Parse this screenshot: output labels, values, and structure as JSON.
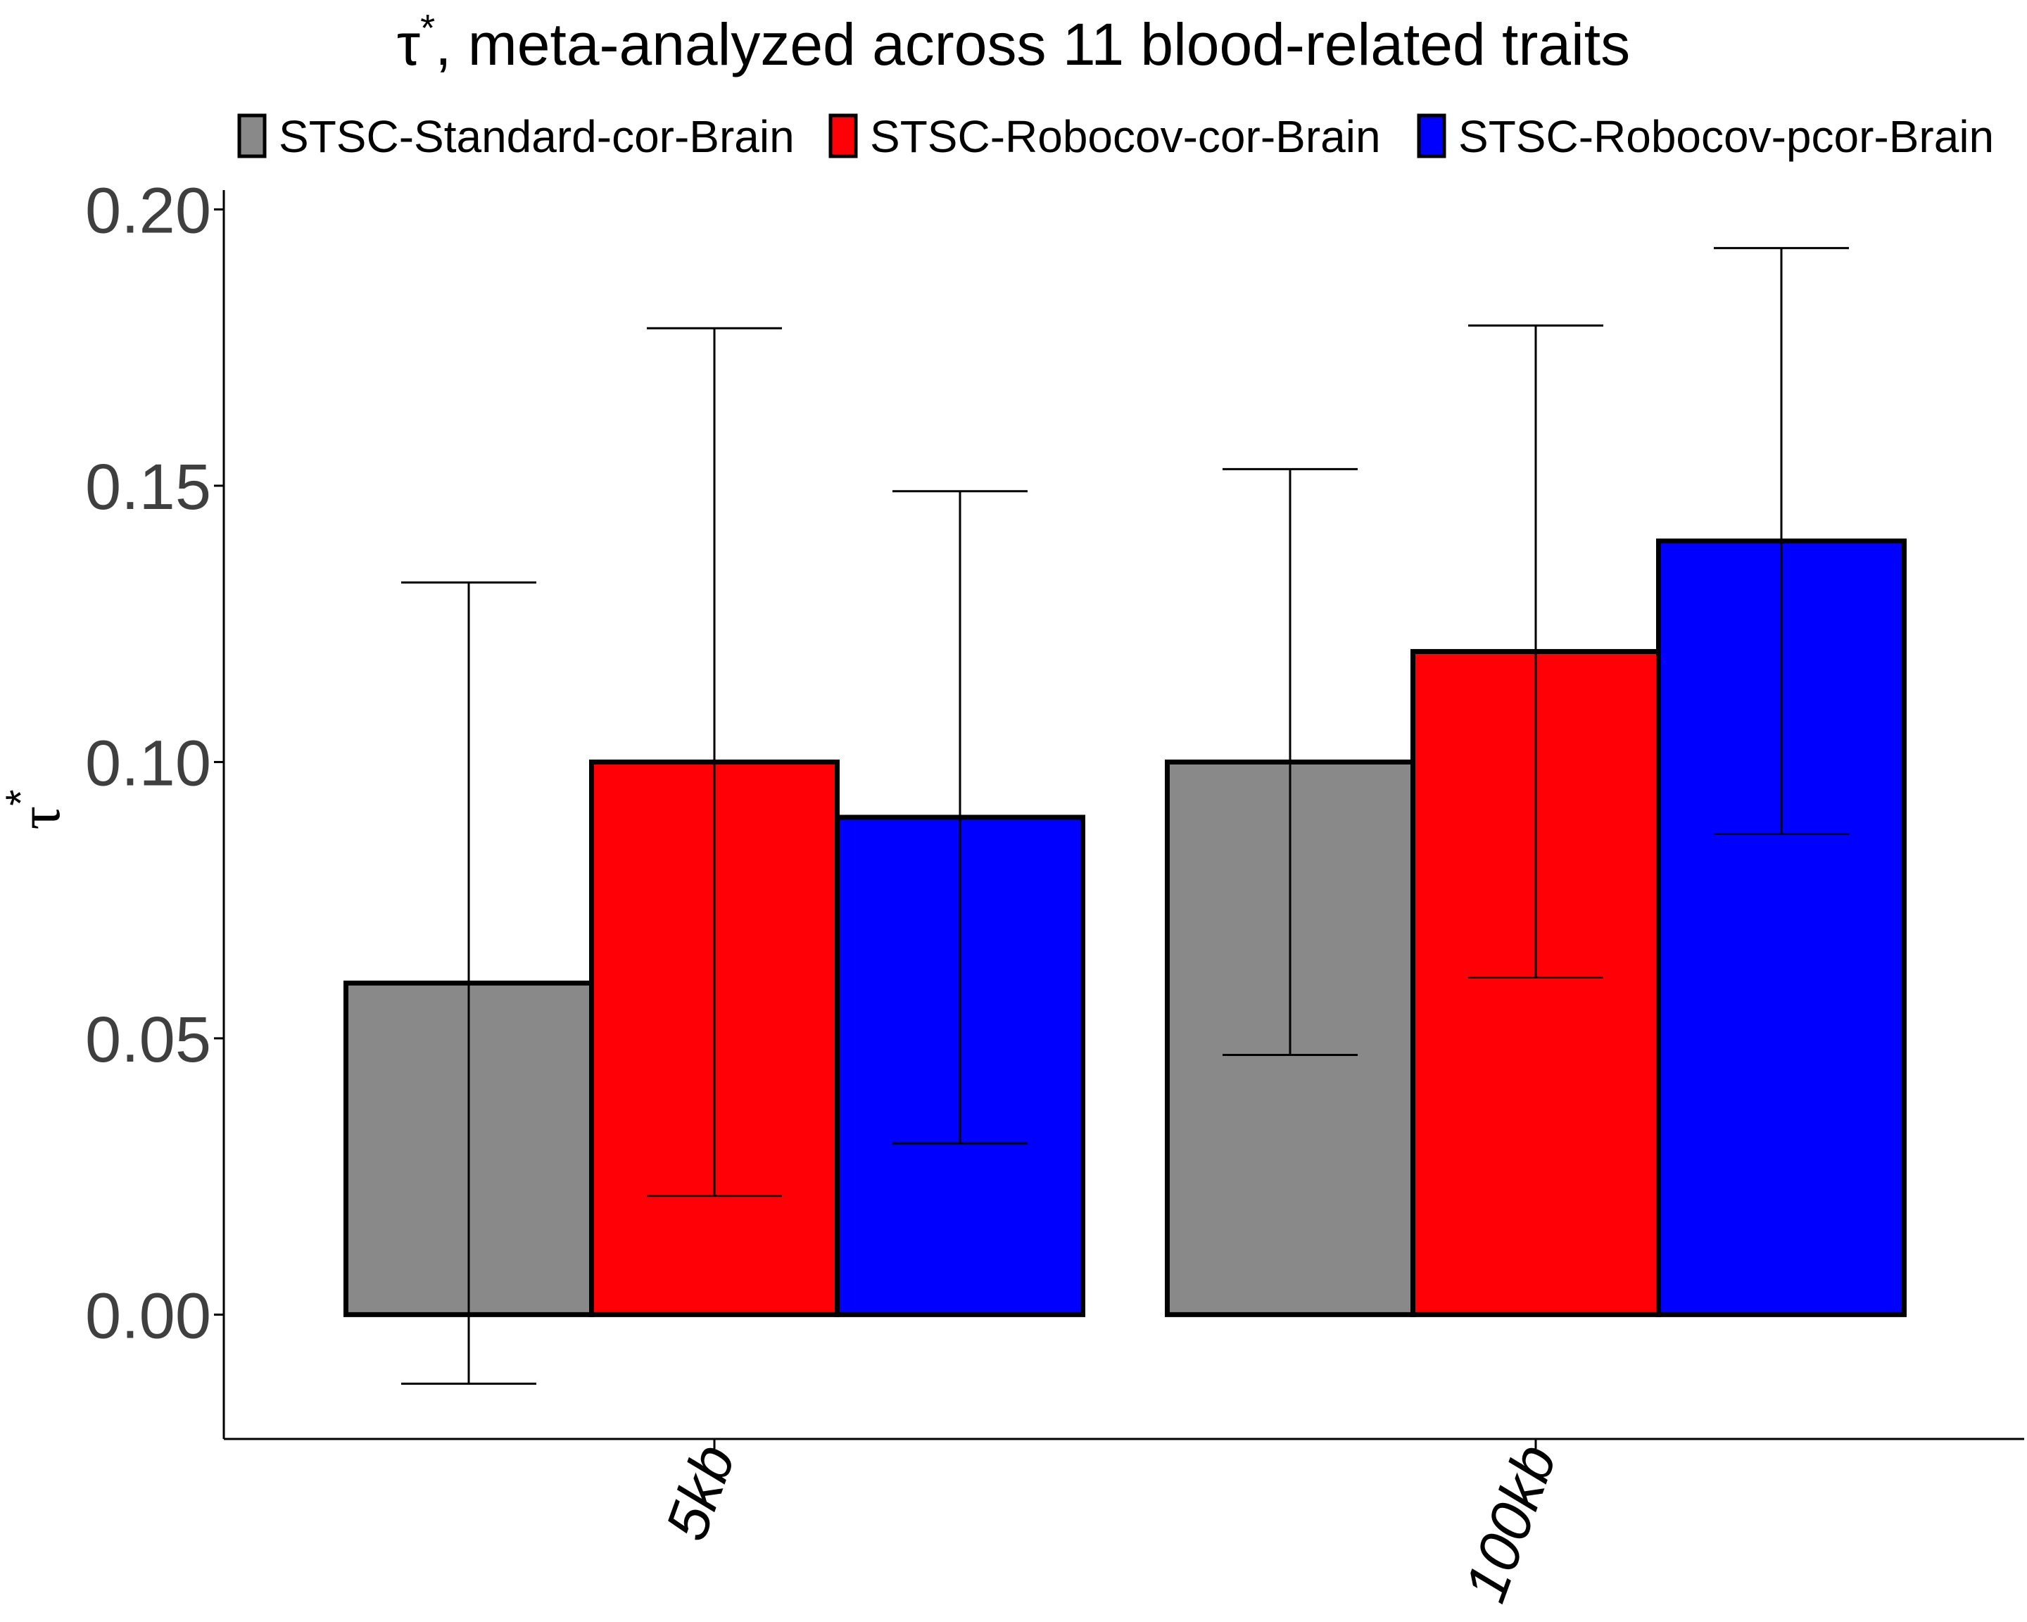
{
  "chart_data": {
    "type": "bar",
    "title": "τ*, meta-analyzed across 11 blood-related traits",
    "title_main": "τ",
    "title_sup": "*",
    "title_rest": ", meta-analyzed across 11 blood-related traits",
    "ylabel": "τ*",
    "ylabel_main": "τ",
    "ylabel_sup": "*",
    "xlabel": "",
    "categories": [
      "5kb",
      "100kb"
    ],
    "ylim": [
      -0.0225,
      0.2035
    ],
    "yticks": [
      0.0,
      0.05,
      0.1,
      0.15,
      0.2
    ],
    "ytick_labels": [
      "0.00",
      "0.05",
      "0.10",
      "0.15",
      "0.20"
    ],
    "legend_position": "top",
    "grid": false,
    "series": [
      {
        "name": "STSC-Standard-cor-Brain",
        "color": "#898989",
        "values": [
          0.06,
          0.1
        ],
        "err_low": [
          -0.0125,
          0.047
        ],
        "err_high": [
          0.1325,
          0.153
        ]
      },
      {
        "name": "STSC-Robocov-cor-Brain",
        "color": "#ff0007",
        "values": [
          0.1,
          0.12
        ],
        "err_low": [
          0.0215,
          0.061
        ],
        "err_high": [
          0.1785,
          0.179
        ]
      },
      {
        "name": "STSC-Robocov-pcor-Brain",
        "color": "#0000ff",
        "values": [
          0.09,
          0.14
        ],
        "err_low": [
          0.031,
          0.087
        ],
        "err_high": [
          0.149,
          0.193
        ]
      }
    ]
  }
}
